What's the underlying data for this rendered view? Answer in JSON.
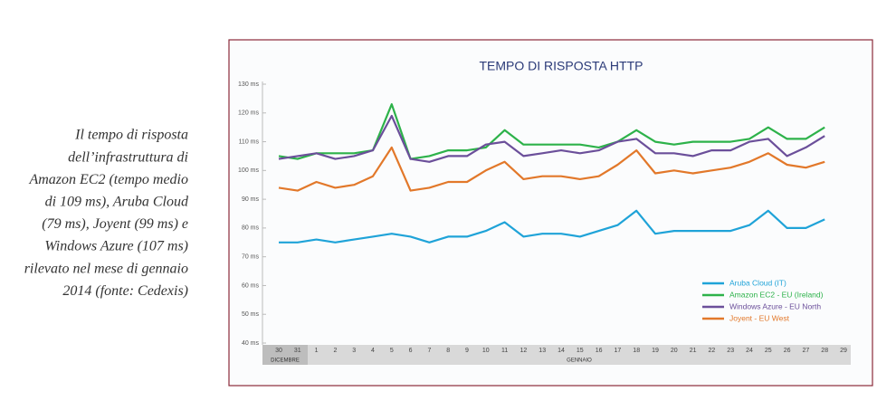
{
  "caption": {
    "lines": [
      "Il tempo di risposta",
      "dell’infrastruttura di",
      "Amazon EC2 (tempo medio",
      "di 109 ms), Aruba Cloud",
      "(79 ms), Joyent (99 ms) e",
      "Windows Azure (107 ms)",
      "rilevato nel mese di gennaio",
      "2014 (fonte: Cedexis)"
    ]
  },
  "chart_data": {
    "type": "line",
    "title": "TEMPO DI RISPOSTA HTTP",
    "categories": [
      "30",
      "31",
      "1",
      "2",
      "3",
      "4",
      "5",
      "6",
      "7",
      "8",
      "9",
      "10",
      "11",
      "12",
      "13",
      "14",
      "15",
      "16",
      "17",
      "18",
      "19",
      "20",
      "21",
      "22",
      "23",
      "24",
      "25",
      "26",
      "27",
      "28",
      "29"
    ],
    "x_group_labels": [
      "DICEMBRE",
      "GENNAIO"
    ],
    "ylim": [
      40,
      130
    ],
    "yticks": [
      {
        "value": 40,
        "label": "40 ms"
      },
      {
        "value": 50,
        "label": "50 ms"
      },
      {
        "value": 60,
        "label": "60 ms"
      },
      {
        "value": 70,
        "label": "70 ms"
      },
      {
        "value": 80,
        "label": "80 ms"
      },
      {
        "value": 90,
        "label": "90 ms"
      },
      {
        "value": 100,
        "label": "100 ms"
      },
      {
        "value": 110,
        "label": "110 ms"
      },
      {
        "value": 120,
        "label": "120 ms"
      },
      {
        "value": 130,
        "label": "130 ms"
      }
    ],
    "grid": false,
    "legend": "lower right",
    "series": [
      {
        "name": "Aruba Cloud (IT)",
        "color": "#1fa3d8",
        "values": [
          75,
          75,
          76,
          75,
          76,
          77,
          78,
          77,
          75,
          77,
          77,
          79,
          82,
          77,
          78,
          78,
          77,
          79,
          81,
          86,
          78,
          79,
          79,
          79,
          79,
          81,
          86,
          80,
          80,
          83,
          null
        ]
      },
      {
        "name": "Amazon EC2 - EU (Ireland)",
        "color": "#2db24a",
        "values": [
          105,
          104,
          106,
          106,
          106,
          107,
          123,
          104,
          105,
          107,
          107,
          108,
          114,
          109,
          109,
          109,
          109,
          108,
          110,
          114,
          110,
          109,
          110,
          110,
          110,
          111,
          115,
          111,
          111,
          115,
          null
        ]
      },
      {
        "name": "Windows Azure - EU North",
        "color": "#6b4f9a",
        "values": [
          104,
          105,
          106,
          104,
          105,
          107,
          119,
          104,
          103,
          105,
          105,
          109,
          110,
          105,
          106,
          107,
          106,
          107,
          110,
          111,
          106,
          106,
          105,
          107,
          107,
          110,
          111,
          105,
          108,
          112,
          null
        ]
      },
      {
        "name": "Joyent - EU West",
        "color": "#e2782a",
        "values": [
          94,
          93,
          96,
          94,
          95,
          98,
          108,
          93,
          94,
          96,
          96,
          100,
          103,
          97,
          98,
          98,
          97,
          98,
          102,
          107,
          99,
          100,
          99,
          100,
          101,
          103,
          106,
          102,
          101,
          103,
          null
        ]
      }
    ]
  }
}
